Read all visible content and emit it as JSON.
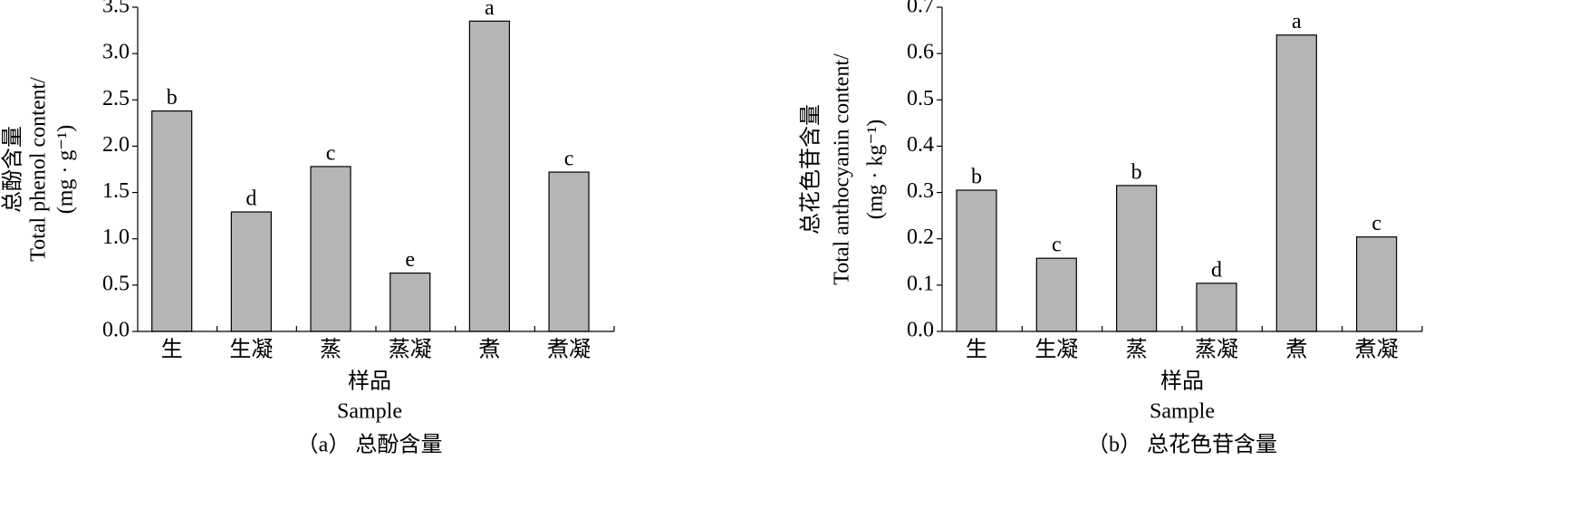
{
  "chart_data": [
    {
      "type": "bar",
      "caption": "（a） 总酚含量",
      "ylabel": [
        "总酚含量",
        "Total phenol content/",
        "(mg · g⁻¹)"
      ],
      "xlabel": [
        "样品",
        "Sample"
      ],
      "categories": [
        "生",
        "生凝",
        "蒸",
        "蒸凝",
        "煮",
        "煮凝"
      ],
      "values": [
        2.38,
        1.29,
        1.78,
        0.63,
        3.35,
        1.72
      ],
      "annotations": [
        "b",
        "d",
        "c",
        "e",
        "a",
        "c"
      ],
      "color": "#b5b5b6",
      "ylim": [
        0,
        3.5
      ],
      "yticks": [
        {
          "value": 0,
          "label": "0.0"
        },
        0.5,
        {
          "value": 1,
          "label": "1.0"
        },
        1.5,
        {
          "value": 2,
          "label": "2.0"
        },
        2.5,
        {
          "value": 3,
          "label": "3.0"
        },
        3.5
      ]
    },
    {
      "type": "bar",
      "caption": "（b） 总花色苷含量",
      "ylabel": [
        "总花色苷含量",
        "Total anthocyanin content/",
        "(mg · kg⁻¹)"
      ],
      "xlabel": [
        "样品",
        "Sample"
      ],
      "categories": [
        "生",
        "生凝",
        "蒸",
        "蒸凝",
        "煮",
        "煮凝"
      ],
      "values": [
        0.305,
        0.158,
        0.315,
        0.104,
        0.64,
        0.204
      ],
      "annotations": [
        "b",
        "c",
        "b",
        "d",
        "a",
        "c"
      ],
      "color": "#b5b5b6",
      "ylim": [
        0,
        0.7
      ],
      "yticks": [
        {
          "value": 0,
          "label": "0.0"
        },
        0.1,
        0.2,
        0.3,
        0.4,
        0.5,
        0.6,
        0.7
      ]
    }
  ]
}
